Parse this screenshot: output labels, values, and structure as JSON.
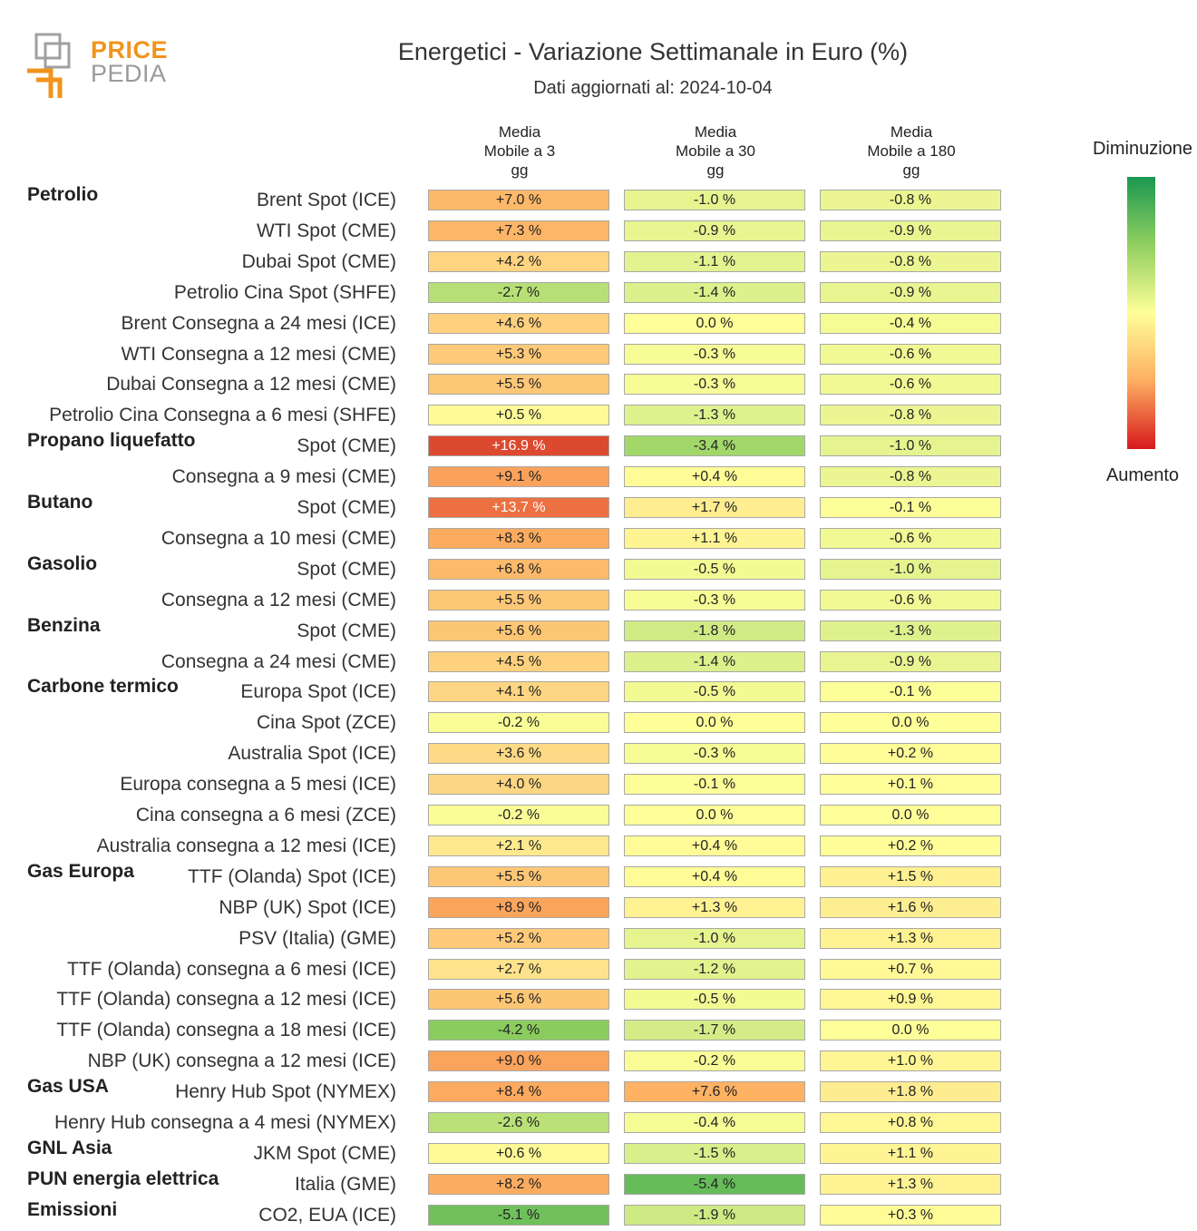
{
  "logo": {
    "line1": "PRICE",
    "line2": "PEDIA"
  },
  "header": {
    "title": "Energetici - Variazione Settimanale in Euro (%)",
    "subtitle": "Dati aggiornati al: 2024-10-04"
  },
  "legend": {
    "top": "Diminuzione",
    "bottom": "Aumento"
  },
  "chart_data": {
    "type": "table",
    "title": "Energetici - Variazione Settimanale in Euro (%)",
    "columns": [
      {
        "l1": "Media",
        "l2": "Mobile a 3",
        "l3": "gg"
      },
      {
        "l1": "Media",
        "l2": "Mobile a 30",
        "l3": "gg"
      },
      {
        "l1": "Media",
        "l2": "Mobile a 180",
        "l3": "gg"
      }
    ],
    "rows": [
      {
        "group": "Petrolio",
        "label": "Brent Spot (ICE)",
        "values": [
          7.0,
          -1.0,
          -0.8
        ]
      },
      {
        "group": "",
        "label": "WTI Spot (CME)",
        "values": [
          7.3,
          -0.9,
          -0.9
        ]
      },
      {
        "group": "",
        "label": "Dubai Spot (CME)",
        "values": [
          4.2,
          -1.1,
          -0.8
        ]
      },
      {
        "group": "",
        "label": "Petrolio Cina Spot (SHFE)",
        "values": [
          -2.7,
          -1.4,
          -0.9
        ]
      },
      {
        "group": "",
        "label": "Brent Consegna a 24 mesi (ICE)",
        "values": [
          4.6,
          0.0,
          -0.4
        ]
      },
      {
        "group": "",
        "label": "WTI Consegna a 12 mesi (CME)",
        "values": [
          5.3,
          -0.3,
          -0.6
        ]
      },
      {
        "group": "",
        "label": "Dubai Consegna a 12 mesi (CME)",
        "values": [
          5.5,
          -0.3,
          -0.6
        ]
      },
      {
        "group": "",
        "label": "Petrolio Cina Consegna a 6 mesi (SHFE)",
        "values": [
          0.5,
          -1.3,
          -0.8
        ]
      },
      {
        "group": "Propano liquefatto",
        "label": "Spot (CME)",
        "values": [
          16.9,
          -3.4,
          -1.0
        ]
      },
      {
        "group": "",
        "label": "Consegna a 9 mesi (CME)",
        "values": [
          9.1,
          0.4,
          -0.8
        ]
      },
      {
        "group": "Butano",
        "label": "Spot (CME)",
        "values": [
          13.7,
          1.7,
          -0.1
        ]
      },
      {
        "group": "",
        "label": "Consegna a 10 mesi (CME)",
        "values": [
          8.3,
          1.1,
          -0.6
        ]
      },
      {
        "group": "Gasolio",
        "label": "Spot (CME)",
        "values": [
          6.8,
          -0.5,
          -1.0
        ]
      },
      {
        "group": "",
        "label": "Consegna a 12 mesi (CME)",
        "values": [
          5.5,
          -0.3,
          -0.6
        ]
      },
      {
        "group": "Benzina",
        "label": "Spot (CME)",
        "values": [
          5.6,
          -1.8,
          -1.3
        ]
      },
      {
        "group": "",
        "label": "Consegna a 24 mesi (CME)",
        "values": [
          4.5,
          -1.4,
          -0.9
        ]
      },
      {
        "group": "Carbone termico",
        "label": "Europa Spot (ICE)",
        "values": [
          4.1,
          -0.5,
          -0.1
        ]
      },
      {
        "group": "",
        "label": "Cina Spot (ZCE)",
        "values": [
          -0.2,
          0.0,
          0.0
        ]
      },
      {
        "group": "",
        "label": "Australia Spot (ICE)",
        "values": [
          3.6,
          -0.3,
          0.2
        ]
      },
      {
        "group": "",
        "label": "Europa consegna a 5 mesi (ICE)",
        "values": [
          4.0,
          -0.1,
          0.1
        ]
      },
      {
        "group": "",
        "label": "Cina consegna a 6 mesi (ZCE)",
        "values": [
          -0.2,
          0.0,
          0.0
        ]
      },
      {
        "group": "",
        "label": "Australia consegna a 12 mesi (ICE)",
        "values": [
          2.1,
          0.4,
          0.2
        ]
      },
      {
        "group": "Gas Europa",
        "label": "TTF (Olanda) Spot (ICE)",
        "values": [
          5.5,
          0.4,
          1.5
        ]
      },
      {
        "group": "",
        "label": "NBP (UK) Spot (ICE)",
        "values": [
          8.9,
          1.3,
          1.6
        ]
      },
      {
        "group": "",
        "label": "PSV (Italia) (GME)",
        "values": [
          5.2,
          -1.0,
          1.3
        ]
      },
      {
        "group": "",
        "label": "TTF (Olanda) consegna a 6 mesi (ICE)",
        "values": [
          2.7,
          -1.2,
          0.7
        ]
      },
      {
        "group": "",
        "label": "TTF (Olanda) consegna a 12 mesi (ICE)",
        "values": [
          5.6,
          -0.5,
          0.9
        ]
      },
      {
        "group": "",
        "label": "TTF (Olanda) consegna a 18 mesi (ICE)",
        "values": [
          -4.2,
          -1.7,
          0.0
        ]
      },
      {
        "group": "",
        "label": "NBP (UK) consegna a 12 mesi (ICE)",
        "values": [
          9.0,
          -0.2,
          1.0
        ]
      },
      {
        "group": "Gas USA",
        "label": "Henry Hub Spot (NYMEX)",
        "values": [
          8.4,
          7.6,
          1.8
        ]
      },
      {
        "group": "",
        "label": "Henry Hub consegna a 4 mesi (NYMEX)",
        "values": [
          -2.6,
          -0.4,
          0.8
        ]
      },
      {
        "group": "GNL Asia",
        "label": "JKM Spot (CME)",
        "values": [
          0.6,
          -1.5,
          1.1
        ]
      },
      {
        "group": "PUN energia elettrica",
        "label": "Italia (GME)",
        "values": [
          8.2,
          -5.4,
          1.3
        ]
      },
      {
        "group": "Emissioni",
        "label": "CO2, EUA (ICE)",
        "values": [
          -5.1,
          -1.9,
          0.3
        ]
      }
    ],
    "color_scale": {
      "low": "#1a9850",
      "mid": "#ffff99",
      "high": "#d7191c"
    }
  }
}
